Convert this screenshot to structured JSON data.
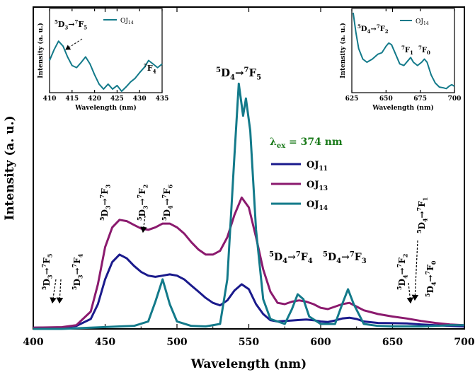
{
  "chart_data": [
    {
      "type": "line",
      "xlabel": "Wavelength (nm)",
      "ylabel": "Intensity (a. u.)",
      "xlim": [
        400,
        700
      ],
      "xticks": [
        "400",
        "450",
        "500",
        "550",
        "600",
        "650",
        "700"
      ],
      "excitation": {
        "symbol": "λ",
        "sub": "ex",
        "rest": "= 374 nm"
      },
      "series": [
        {
          "name": "OJ11",
          "label_main": "OJ",
          "label_sub": "11",
          "color": "#1a1a8c",
          "points": [
            [
              400,
              0.005
            ],
            [
              420,
              0.006
            ],
            [
              430,
              0.012
            ],
            [
              440,
              0.04
            ],
            [
              445,
              0.1
            ],
            [
              450,
              0.2
            ],
            [
              455,
              0.27
            ],
            [
              460,
              0.3
            ],
            [
              465,
              0.285
            ],
            [
              470,
              0.255
            ],
            [
              475,
              0.23
            ],
            [
              480,
              0.215
            ],
            [
              485,
              0.21
            ],
            [
              490,
              0.215
            ],
            [
              495,
              0.22
            ],
            [
              500,
              0.215
            ],
            [
              505,
              0.2
            ],
            [
              510,
              0.175
            ],
            [
              515,
              0.15
            ],
            [
              520,
              0.125
            ],
            [
              525,
              0.105
            ],
            [
              530,
              0.095
            ],
            [
              535,
              0.115
            ],
            [
              540,
              0.155
            ],
            [
              545,
              0.18
            ],
            [
              550,
              0.16
            ],
            [
              555,
              0.1
            ],
            [
              560,
              0.06
            ],
            [
              565,
              0.035
            ],
            [
              570,
              0.03
            ],
            [
              575,
              0.032
            ],
            [
              580,
              0.034
            ],
            [
              585,
              0.036
            ],
            [
              590,
              0.038
            ],
            [
              595,
              0.035
            ],
            [
              600,
              0.03
            ],
            [
              605,
              0.028
            ],
            [
              610,
              0.034
            ],
            [
              615,
              0.042
            ],
            [
              620,
              0.045
            ],
            [
              625,
              0.04
            ],
            [
              630,
              0.03
            ],
            [
              640,
              0.024
            ],
            [
              650,
              0.023
            ],
            [
              660,
              0.022
            ],
            [
              670,
              0.018
            ],
            [
              680,
              0.015
            ],
            [
              690,
              0.012
            ],
            [
              700,
              0.01
            ]
          ]
        },
        {
          "name": "OJ13",
          "label_main": "OJ",
          "label_sub": "13",
          "color": "#8b1a6e",
          "points": [
            [
              400,
              0.005
            ],
            [
              420,
              0.007
            ],
            [
              430,
              0.015
            ],
            [
              440,
              0.07
            ],
            [
              445,
              0.18
            ],
            [
              450,
              0.33
            ],
            [
              455,
              0.41
            ],
            [
              460,
              0.44
            ],
            [
              465,
              0.435
            ],
            [
              470,
              0.42
            ],
            [
              475,
              0.405
            ],
            [
              480,
              0.4
            ],
            [
              485,
              0.41
            ],
            [
              490,
              0.425
            ],
            [
              495,
              0.425
            ],
            [
              500,
              0.41
            ],
            [
              505,
              0.385
            ],
            [
              510,
              0.35
            ],
            [
              515,
              0.32
            ],
            [
              520,
              0.3
            ],
            [
              525,
              0.3
            ],
            [
              530,
              0.315
            ],
            [
              535,
              0.37
            ],
            [
              540,
              0.46
            ],
            [
              545,
              0.53
            ],
            [
              550,
              0.49
            ],
            [
              555,
              0.37
            ],
            [
              560,
              0.24
            ],
            [
              565,
              0.15
            ],
            [
              570,
              0.105
            ],
            [
              575,
              0.1
            ],
            [
              580,
              0.11
            ],
            [
              585,
              0.115
            ],
            [
              590,
              0.11
            ],
            [
              595,
              0.1
            ],
            [
              600,
              0.085
            ],
            [
              605,
              0.08
            ],
            [
              610,
              0.09
            ],
            [
              615,
              0.1
            ],
            [
              620,
              0.105
            ],
            [
              625,
              0.09
            ],
            [
              630,
              0.075
            ],
            [
              640,
              0.06
            ],
            [
              650,
              0.05
            ],
            [
              660,
              0.042
            ],
            [
              670,
              0.032
            ],
            [
              680,
              0.024
            ],
            [
              690,
              0.018
            ],
            [
              700,
              0.015
            ]
          ]
        },
        {
          "name": "OJ14",
          "label_main": "OJ",
          "label_sub": "14",
          "color": "#137a8a",
          "points": [
            [
              400,
              0.0
            ],
            [
              420,
              0.0
            ],
            [
              440,
              0.005
            ],
            [
              460,
              0.01
            ],
            [
              470,
              0.012
            ],
            [
              480,
              0.03
            ],
            [
              485,
              0.11
            ],
            [
              490,
              0.2
            ],
            [
              495,
              0.1
            ],
            [
              500,
              0.03
            ],
            [
              510,
              0.012
            ],
            [
              520,
              0.01
            ],
            [
              530,
              0.02
            ],
            [
              535,
              0.2
            ],
            [
              540,
              0.7
            ],
            [
              543,
              0.99
            ],
            [
              546,
              0.86
            ],
            [
              548,
              0.93
            ],
            [
              551,
              0.8
            ],
            [
              555,
              0.4
            ],
            [
              560,
              0.12
            ],
            [
              565,
              0.04
            ],
            [
              575,
              0.02
            ],
            [
              580,
              0.08
            ],
            [
              584,
              0.14
            ],
            [
              588,
              0.12
            ],
            [
              592,
              0.05
            ],
            [
              600,
              0.02
            ],
            [
              610,
              0.02
            ],
            [
              615,
              0.1
            ],
            [
              619,
              0.16
            ],
            [
              623,
              0.1
            ],
            [
              630,
              0.02
            ],
            [
              640,
              0.012
            ],
            [
              650,
              0.01
            ],
            [
              660,
              0.01
            ],
            [
              670,
              0.01
            ],
            [
              680,
              0.012
            ],
            [
              690,
              0.015
            ],
            [
              700,
              0.015
            ]
          ]
        }
      ],
      "annotations": [
        {
          "pre": "5",
          "mid": "D",
          "sub": "4",
          "arrow": "→",
          "pre2": "7",
          "end": "F",
          "sub2": "5"
        },
        {
          "pre": "5",
          "mid": "D",
          "sub": "4",
          "arrow": "→",
          "pre2": "7",
          "end": "F",
          "sub2": "4"
        },
        {
          "pre": "5",
          "mid": "D",
          "sub": "4",
          "arrow": "→",
          "pre2": "7",
          "end": "F",
          "sub2": "3"
        },
        {
          "pre": "5",
          "mid": "D",
          "sub": "3",
          "arrow": "→",
          "pre2": "7",
          "end": "F",
          "sub2": "5"
        },
        {
          "pre": "5",
          "mid": "D",
          "sub": "3",
          "arrow": "→",
          "pre2": "7",
          "end": "F",
          "sub2": "4"
        },
        {
          "pre": "5",
          "mid": "D",
          "sub": "3",
          "arrow": "→",
          "pre2": "7",
          "end": "F",
          "sub2": "3"
        },
        {
          "pre": "5",
          "mid": "D",
          "sub": "3",
          "arrow": "→",
          "pre2": "7",
          "end": "F",
          "sub2": "2"
        },
        {
          "pre": "5",
          "mid": "D",
          "sub": "4",
          "arrow": "→",
          "pre2": "7",
          "end": "F",
          "sub2": "6"
        },
        {
          "pre": "5",
          "mid": "D",
          "sub": "4",
          "arrow": "→",
          "pre2": "7",
          "end": "F",
          "sub2": "2"
        },
        {
          "pre": "5",
          "mid": "D",
          "sub": "4",
          "arrow": "→",
          "pre2": "7",
          "end": "F",
          "sub2": "1"
        },
        {
          "pre": "5",
          "mid": "D",
          "sub": "4",
          "arrow": "→",
          "pre2": "7",
          "end": "F",
          "sub2": "0"
        }
      ]
    },
    {
      "type": "line",
      "xlabel": "Wavelength (nm)",
      "ylabel": "Intensity (a. u.)",
      "xlim": [
        410,
        435
      ],
      "xticks": [
        "410",
        "415",
        "420",
        "425",
        "430",
        "435"
      ],
      "series": [
        {
          "name": "OJ14",
          "label_main": "OJ",
          "label_sub": "14",
          "color": "#137a8a",
          "points": [
            [
              410,
              0.45
            ],
            [
              411,
              0.6
            ],
            [
              412,
              0.72
            ],
            [
              413,
              0.65
            ],
            [
              414,
              0.5
            ],
            [
              415,
              0.38
            ],
            [
              416,
              0.35
            ],
            [
              417,
              0.42
            ],
            [
              418,
              0.5
            ],
            [
              419,
              0.4
            ],
            [
              420,
              0.25
            ],
            [
              421,
              0.12
            ],
            [
              422,
              0.05
            ],
            [
              423,
              0.12
            ],
            [
              424,
              0.05
            ],
            [
              425,
              0.1
            ],
            [
              426,
              0.02
            ],
            [
              427,
              0.08
            ],
            [
              428,
              0.15
            ],
            [
              429,
              0.2
            ],
            [
              430,
              0.28
            ],
            [
              431,
              0.35
            ],
            [
              432,
              0.45
            ],
            [
              433,
              0.4
            ],
            [
              434,
              0.35
            ],
            [
              435,
              0.4
            ]
          ]
        }
      ],
      "annotations": [
        {
          "pre": "5",
          "mid": "D",
          "sub": "3",
          "arrow": "→",
          "pre2": "7",
          "end": "F",
          "sub2": "5"
        },
        {
          "pre": "7",
          "end": "F",
          "sub2": "4"
        }
      ]
    },
    {
      "type": "line",
      "xlabel": "Wavelength (nm)",
      "ylabel": "Intensity (a. u.)",
      "xlim": [
        625,
        700
      ],
      "xticks": [
        "625",
        "650",
        "675",
        "700"
      ],
      "series": [
        {
          "name": "OJ14",
          "label_main": "OJ",
          "label_sub": "14",
          "color": "#137a8a",
          "points": [
            [
              626,
              1.0
            ],
            [
              628,
              0.75
            ],
            [
              630,
              0.55
            ],
            [
              633,
              0.42
            ],
            [
              636,
              0.38
            ],
            [
              640,
              0.42
            ],
            [
              644,
              0.48
            ],
            [
              647,
              0.5
            ],
            [
              650,
              0.58
            ],
            [
              652,
              0.62
            ],
            [
              654,
              0.6
            ],
            [
              657,
              0.48
            ],
            [
              660,
              0.36
            ],
            [
              663,
              0.34
            ],
            [
              666,
              0.4
            ],
            [
              668,
              0.44
            ],
            [
              670,
              0.38
            ],
            [
              673,
              0.34
            ],
            [
              676,
              0.38
            ],
            [
              678,
              0.42
            ],
            [
              680,
              0.38
            ],
            [
              683,
              0.22
            ],
            [
              686,
              0.12
            ],
            [
              689,
              0.07
            ],
            [
              692,
              0.06
            ],
            [
              694,
              0.05
            ],
            [
              696,
              0.08
            ],
            [
              698,
              0.1
            ],
            [
              700,
              0.08
            ]
          ]
        }
      ],
      "annotations": [
        {
          "pre": "5",
          "mid": "D",
          "sub": "4",
          "arrow": "→",
          "pre2": "7",
          "end": "F",
          "sub2": "2"
        },
        {
          "pre": "7",
          "end": "F",
          "sub2": "1"
        },
        {
          "pre": "7",
          "end": "F",
          "sub2": "0"
        }
      ]
    }
  ]
}
